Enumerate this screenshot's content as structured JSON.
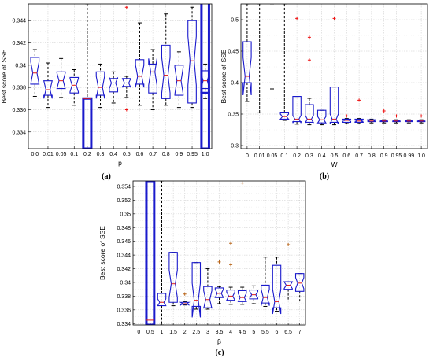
{
  "chart_data": [
    {
      "type": "boxplot",
      "panel_label": "(a)",
      "xlabel": "p",
      "ylabel": "Best score of SSE",
      "ylim": [
        0.3325,
        0.3455
      ],
      "yticks": [
        0.334,
        0.336,
        0.338,
        0.34,
        0.342,
        0.344
      ],
      "ytick_labels": [
        "0.334",
        "0.336",
        "0.338",
        "0.34",
        "0.342",
        "0.344"
      ],
      "categories": [
        "0.0",
        "0.01",
        "0.05",
        "0.1",
        "0.2",
        "0.3",
        "0.4",
        "0.5",
        "0.6",
        "0.7",
        "0.8",
        "0.9",
        "0.95",
        "1.0"
      ],
      "grid": true,
      "boxes": [
        {
          "q1": 0.3383,
          "med": 0.3393,
          "q3": 0.3407,
          "wlo": 0.3372,
          "whi": 0.3414,
          "notch": 0.001,
          "outliers": []
        },
        {
          "q1": 0.3373,
          "med": 0.3378,
          "q3": 0.3386,
          "wlo": 0.3362,
          "whi": 0.3402,
          "notch": 0.0008,
          "outliers": []
        },
        {
          "q1": 0.3379,
          "med": 0.3386,
          "q3": 0.3394,
          "wlo": 0.3371,
          "whi": 0.3406,
          "notch": 0.0007,
          "outliers": []
        },
        {
          "q1": 0.3375,
          "med": 0.3382,
          "q3": 0.3389,
          "wlo": 0.3364,
          "whi": 0.3396,
          "notch": 0.0006,
          "outliers": []
        },
        {
          "q1": 0.3325,
          "med": 0.337,
          "q3": 0.337,
          "wlo": 0.3325,
          "whi": 0.3455,
          "notch": 0.0,
          "outliers": [],
          "wide": true
        },
        {
          "q1": 0.3373,
          "med": 0.338,
          "q3": 0.3394,
          "wlo": 0.3362,
          "whi": 0.3401,
          "notch": 0.001,
          "outliers": []
        },
        {
          "q1": 0.3376,
          "med": 0.3384,
          "q3": 0.3388,
          "wlo": 0.3366,
          "whi": 0.3394,
          "notch": 0.0005,
          "outliers": []
        },
        {
          "q1": 0.3381,
          "med": 0.3384,
          "q3": 0.3388,
          "wlo": 0.3371,
          "whi": 0.339,
          "notch": 0.0004,
          "outliers": [
            0.336,
            0.3452
          ]
        },
        {
          "q1": 0.3383,
          "med": 0.339,
          "q3": 0.3405,
          "wlo": 0.3364,
          "whi": 0.3438,
          "notch": 0.001,
          "outliers": []
        },
        {
          "q1": 0.3375,
          "med": 0.3394,
          "q3": 0.3401,
          "wlo": 0.336,
          "whi": 0.3414,
          "notch": 0.0012,
          "outliers": []
        },
        {
          "q1": 0.337,
          "med": 0.3391,
          "q3": 0.3418,
          "wlo": 0.3364,
          "whi": 0.3446,
          "notch": 0.0016,
          "outliers": []
        },
        {
          "q1": 0.3373,
          "med": 0.3386,
          "q3": 0.34,
          "wlo": 0.3362,
          "whi": 0.3412,
          "notch": 0.0012,
          "outliers": []
        },
        {
          "q1": 0.3366,
          "med": 0.3404,
          "q3": 0.344,
          "wlo": 0.3362,
          "whi": 0.3452,
          "notch": 0.0022,
          "outliers": []
        },
        {
          "q1": 0.3379,
          "med": 0.3386,
          "q3": 0.3395,
          "wlo": 0.337,
          "whi": 0.3401,
          "notch": 0.0007,
          "outliers": []
        }
      ],
      "extra_wide": [
        {
          "category": "1.0",
          "q1": 0.3325,
          "q3": 0.3375,
          "med": 0.3375,
          "whi": 0.3455
        }
      ]
    },
    {
      "type": "boxplot",
      "panel_label": "(b)",
      "xlabel": "W",
      "ylabel": "Best score of SSE",
      "ylim": [
        0.295,
        0.525
      ],
      "yticks": [
        0.3,
        0.35,
        0.4,
        0.45,
        0.5
      ],
      "ytick_labels": [
        "0.3",
        "0.35",
        "0.4",
        "0.45",
        "0.5"
      ],
      "categories": [
        "0",
        "0.01",
        "0.05",
        "0.1",
        "0.2",
        "0.3",
        "0.4",
        "0.5",
        "0.6",
        "0.7",
        "0.8",
        "0.9",
        "0.95",
        "0.99",
        "1.0"
      ],
      "grid": true,
      "boxes": [
        {
          "q1": 0.4,
          "med": 0.41,
          "q3": 0.465,
          "wlo": 0.37,
          "whi": 0.525,
          "notch": 0.03,
          "outliers": []
        },
        {
          "q1": null,
          "med": null,
          "q3": null,
          "wlo": 0.352,
          "whi": 0.525,
          "notch": 0,
          "outliers": []
        },
        {
          "q1": null,
          "med": null,
          "q3": null,
          "wlo": 0.39,
          "whi": 0.525,
          "notch": 0,
          "outliers": []
        },
        {
          "q1": 0.342,
          "med": 0.346,
          "q3": 0.353,
          "wlo": 0.34,
          "whi": 0.525,
          "notch": 0.004,
          "outliers": []
        },
        {
          "q1": 0.338,
          "med": 0.342,
          "q3": 0.378,
          "wlo": 0.334,
          "whi": 0.378,
          "notch": 0.006,
          "outliers": [
            0.502
          ]
        },
        {
          "q1": 0.337,
          "med": 0.342,
          "q3": 0.365,
          "wlo": 0.333,
          "whi": 0.375,
          "notch": 0.006,
          "outliers": [
            0.472,
            0.436
          ]
        },
        {
          "q1": 0.336,
          "med": 0.341,
          "q3": 0.356,
          "wlo": 0.333,
          "whi": 0.356,
          "notch": 0.005,
          "outliers": []
        },
        {
          "q1": 0.337,
          "med": 0.342,
          "q3": 0.393,
          "wlo": 0.333,
          "whi": 0.393,
          "notch": 0.008,
          "outliers": [
            0.502
          ]
        },
        {
          "q1": 0.337,
          "med": 0.34,
          "q3": 0.342,
          "wlo": 0.335,
          "whi": 0.343,
          "notch": 0.0015,
          "outliers": [
            0.347
          ]
        },
        {
          "q1": 0.337,
          "med": 0.339,
          "q3": 0.342,
          "wlo": 0.335,
          "whi": 0.343,
          "notch": 0.0015,
          "outliers": [
            0.372
          ]
        },
        {
          "q1": 0.338,
          "med": 0.339,
          "q3": 0.341,
          "wlo": 0.336,
          "whi": 0.342,
          "notch": 0.001,
          "outliers": []
        },
        {
          "q1": 0.338,
          "med": 0.339,
          "q3": 0.34,
          "wlo": 0.336,
          "whi": 0.341,
          "notch": 0.001,
          "outliers": [
            0.355
          ]
        },
        {
          "q1": 0.338,
          "med": 0.339,
          "q3": 0.34,
          "wlo": 0.336,
          "whi": 0.341,
          "notch": 0.001,
          "outliers": [
            0.347
          ]
        },
        {
          "q1": 0.338,
          "med": 0.339,
          "q3": 0.34,
          "wlo": 0.336,
          "whi": 0.341,
          "notch": 0.001,
          "outliers": []
        },
        {
          "q1": 0.338,
          "med": 0.339,
          "q3": 0.34,
          "wlo": 0.336,
          "whi": 0.341,
          "notch": 0.001,
          "outliers": [
            0.347
          ]
        }
      ]
    },
    {
      "type": "boxplot",
      "panel_label": "(c)",
      "xlabel": "β",
      "ylabel": "Best score of SSE",
      "ylim": [
        0.3338,
        0.3548
      ],
      "yticks": [
        0.334,
        0.336,
        0.338,
        0.34,
        0.342,
        0.344,
        0.346,
        0.348,
        0.35,
        0.352,
        0.354
      ],
      "ytick_labels": [
        "0.334",
        "0.336",
        "0.338",
        "0.34",
        "0.342",
        "0.344",
        "0.346",
        "0.348",
        "0.35",
        "0.352",
        "0.354"
      ],
      "categories": [
        "0",
        "0.5",
        "1",
        "1.5",
        "2",
        "2.5",
        "3",
        "3.5",
        "4",
        "4.5",
        "5",
        "5.5",
        "6",
        "6.5",
        "7"
      ],
      "grid": true,
      "boxes": [
        {
          "q1": null,
          "med": null,
          "q3": null,
          "wlo": null,
          "whi": null,
          "notch": 0,
          "outliers": []
        },
        {
          "q1": 0.3338,
          "med": 0.3345,
          "q3": 0.3548,
          "wlo": 0.3338,
          "whi": 0.3548,
          "notch": 0,
          "outliers": [],
          "wide": true
        },
        {
          "q1": 0.3366,
          "med": 0.3371,
          "q3": 0.3384,
          "wlo": 0.3338,
          "whi": 0.3548,
          "notch": 0.0005,
          "outliers": []
        },
        {
          "q1": 0.3371,
          "med": 0.3398,
          "q3": 0.3444,
          "wlo": 0.3366,
          "whi": 0.3444,
          "notch": 0.002,
          "outliers": []
        },
        {
          "q1": 0.3368,
          "med": 0.3369,
          "q3": 0.3371,
          "wlo": 0.3367,
          "whi": 0.3372,
          "notch": 0.0002,
          "outliers": [
            0.3383
          ]
        },
        {
          "q1": 0.3365,
          "med": 0.3374,
          "q3": 0.3429,
          "wlo": 0.3361,
          "whi": 0.3429,
          "notch": 0.0025,
          "outliers": []
        },
        {
          "q1": 0.3363,
          "med": 0.3375,
          "q3": 0.3394,
          "wlo": 0.3361,
          "whi": 0.342,
          "notch": 0.0013,
          "outliers": []
        },
        {
          "q1": 0.3378,
          "med": 0.3384,
          "q3": 0.3392,
          "wlo": 0.3369,
          "whi": 0.3394,
          "notch": 0.0006,
          "outliers": [
            0.343
          ]
        },
        {
          "q1": 0.3374,
          "med": 0.338,
          "q3": 0.3389,
          "wlo": 0.3368,
          "whi": 0.3393,
          "notch": 0.0006,
          "outliers": [
            0.3457,
            0.3426
          ]
        },
        {
          "q1": 0.3372,
          "med": 0.3378,
          "q3": 0.3388,
          "wlo": 0.3368,
          "whi": 0.3393,
          "notch": 0.0006,
          "outliers": [
            0.3545
          ]
        },
        {
          "q1": 0.3376,
          "med": 0.3382,
          "q3": 0.3389,
          "wlo": 0.3369,
          "whi": 0.3395,
          "notch": 0.0005,
          "outliers": []
        },
        {
          "q1": 0.337,
          "med": 0.3378,
          "q3": 0.3396,
          "wlo": 0.3365,
          "whi": 0.3437,
          "notch": 0.0012,
          "outliers": []
        },
        {
          "q1": 0.3363,
          "med": 0.3372,
          "q3": 0.3425,
          "wlo": 0.3358,
          "whi": 0.3437,
          "notch": 0.0018,
          "outliers": []
        },
        {
          "q1": 0.339,
          "med": 0.3396,
          "q3": 0.3401,
          "wlo": 0.3373,
          "whi": 0.3401,
          "notch": 0.0005,
          "outliers": [
            0.3455
          ]
        },
        {
          "q1": 0.3387,
          "med": 0.3399,
          "q3": 0.3413,
          "wlo": 0.3373,
          "whi": 0.3413,
          "notch": 0.0008,
          "outliers": []
        }
      ]
    }
  ],
  "colors": {
    "box": "#1a1acc",
    "median": "#e01818",
    "whisker": "#000000",
    "outlier_ab": "#ee1111",
    "outlier_c": "#b8651a",
    "grid": "#c8c8c8"
  }
}
